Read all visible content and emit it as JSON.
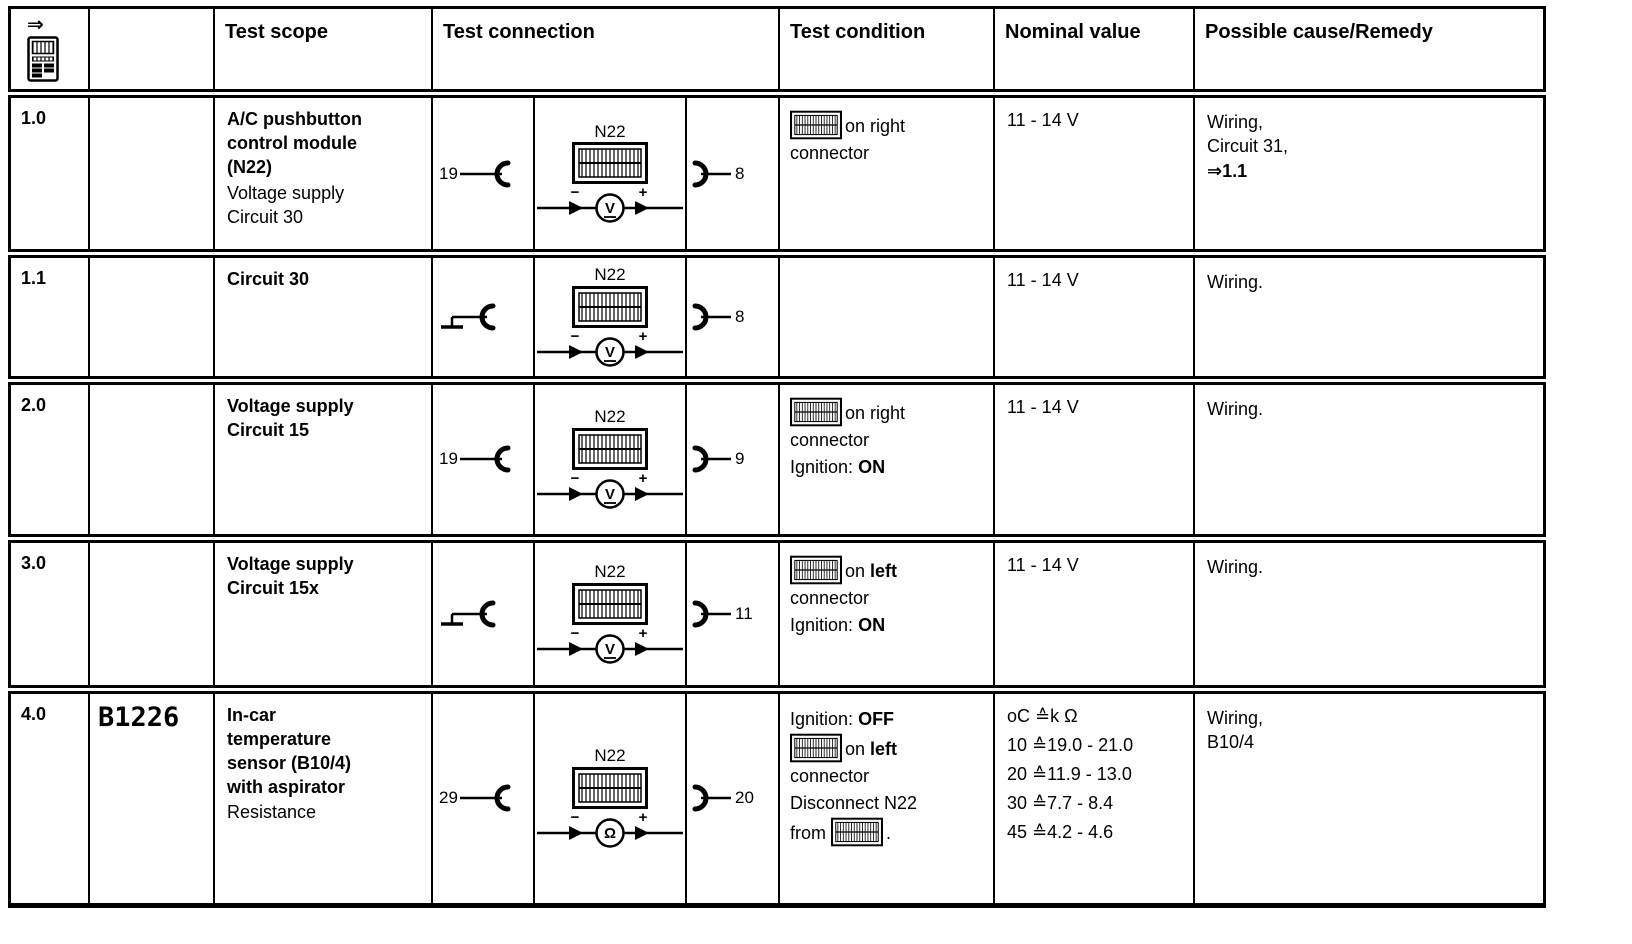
{
  "colors": {
    "background": "#ffffff",
    "text": "#000000",
    "border": "#000000"
  },
  "header": {
    "step_arrow": "⇒",
    "cols": {
      "test_scope": "Test scope",
      "test_connection": "Test connection",
      "test_condition": "Test condition",
      "nominal_value": "Nominal value",
      "possible_cause": "Possible cause/Remedy"
    }
  },
  "rows": [
    {
      "num": "1.0",
      "code": "",
      "scope_title_lines": [
        "A/C pushbutton",
        "control module",
        "(N22)"
      ],
      "scope_sub_lines": [
        "Voltage supply",
        "Circuit 30"
      ],
      "conn": {
        "left_pin": "19",
        "module": "N22",
        "meter": "V",
        "minus": "−",
        "plus": "+",
        "right_pin": "8"
      },
      "cond": {
        "on_word": "on",
        "side": "right",
        "connector_word": "connector"
      },
      "nominal": "11 - 14 V",
      "cause_lines": [
        "Wiring,",
        "Circuit 31,"
      ],
      "cause_ref_arrow": "⇒",
      "cause_ref": "1.1"
    },
    {
      "num": "1.1",
      "code": "",
      "scope_title_lines": [
        "Circuit 30"
      ],
      "scope_sub_lines": [],
      "conn": {
        "module": "N22",
        "meter": "V",
        "minus": "−",
        "plus": "+",
        "right_pin": "8"
      },
      "nominal": "11 - 14 V",
      "cause_lines": [
        "Wiring."
      ]
    },
    {
      "num": "2.0",
      "code": "",
      "scope_title_lines": [
        "Voltage supply",
        "Circuit 15"
      ],
      "scope_sub_lines": [],
      "conn": {
        "left_pin": "19",
        "module": "N22",
        "meter": "V",
        "minus": "−",
        "plus": "+",
        "right_pin": "9"
      },
      "cond": {
        "on_word": "on",
        "side": "right",
        "connector_word": "connector",
        "ignition_label": "Ignition:",
        "ignition_state": "ON"
      },
      "nominal": "11 - 14 V",
      "cause_lines": [
        "Wiring."
      ]
    },
    {
      "num": "3.0",
      "code": "",
      "scope_title_lines": [
        "Voltage supply",
        "Circuit 15x"
      ],
      "scope_sub_lines": [],
      "conn": {
        "module": "N22",
        "meter": "V",
        "minus": "−",
        "plus": "+",
        "right_pin": "11"
      },
      "cond": {
        "on_word": "on",
        "side": "left",
        "connector_word": "connector",
        "ignition_label": "Ignition:",
        "ignition_state": "ON"
      },
      "nominal": "11 - 14 V",
      "cause_lines": [
        "Wiring."
      ]
    },
    {
      "num": "4.0",
      "code": "B1226",
      "scope_title_lines": [
        "In-car",
        "temperature",
        "sensor (B10/4)",
        "with aspirator"
      ],
      "scope_sub_lines": [
        "Resistance"
      ],
      "conn": {
        "left_pin": "29",
        "module": "N22",
        "meter": "Ω",
        "minus": "−",
        "plus": "+",
        "right_pin": "20"
      },
      "cond": {
        "ignition_label": "Ignition:",
        "ignition_state": "OFF",
        "on_word": "on",
        "side": "left",
        "connector_word": "connector",
        "disconnect_line": "Disconnect N22",
        "from_word": "from",
        "period": "."
      },
      "nominal_lines": [
        "oC ≙k Ω",
        "10 ≙19.0 - 21.0",
        "20 ≙11.9 - 13.0",
        "30 ≙7.7 - 8.4",
        "45 ≙4.2 - 4.6"
      ],
      "cause_lines": [
        "Wiring,",
        "B10/4"
      ]
    }
  ]
}
